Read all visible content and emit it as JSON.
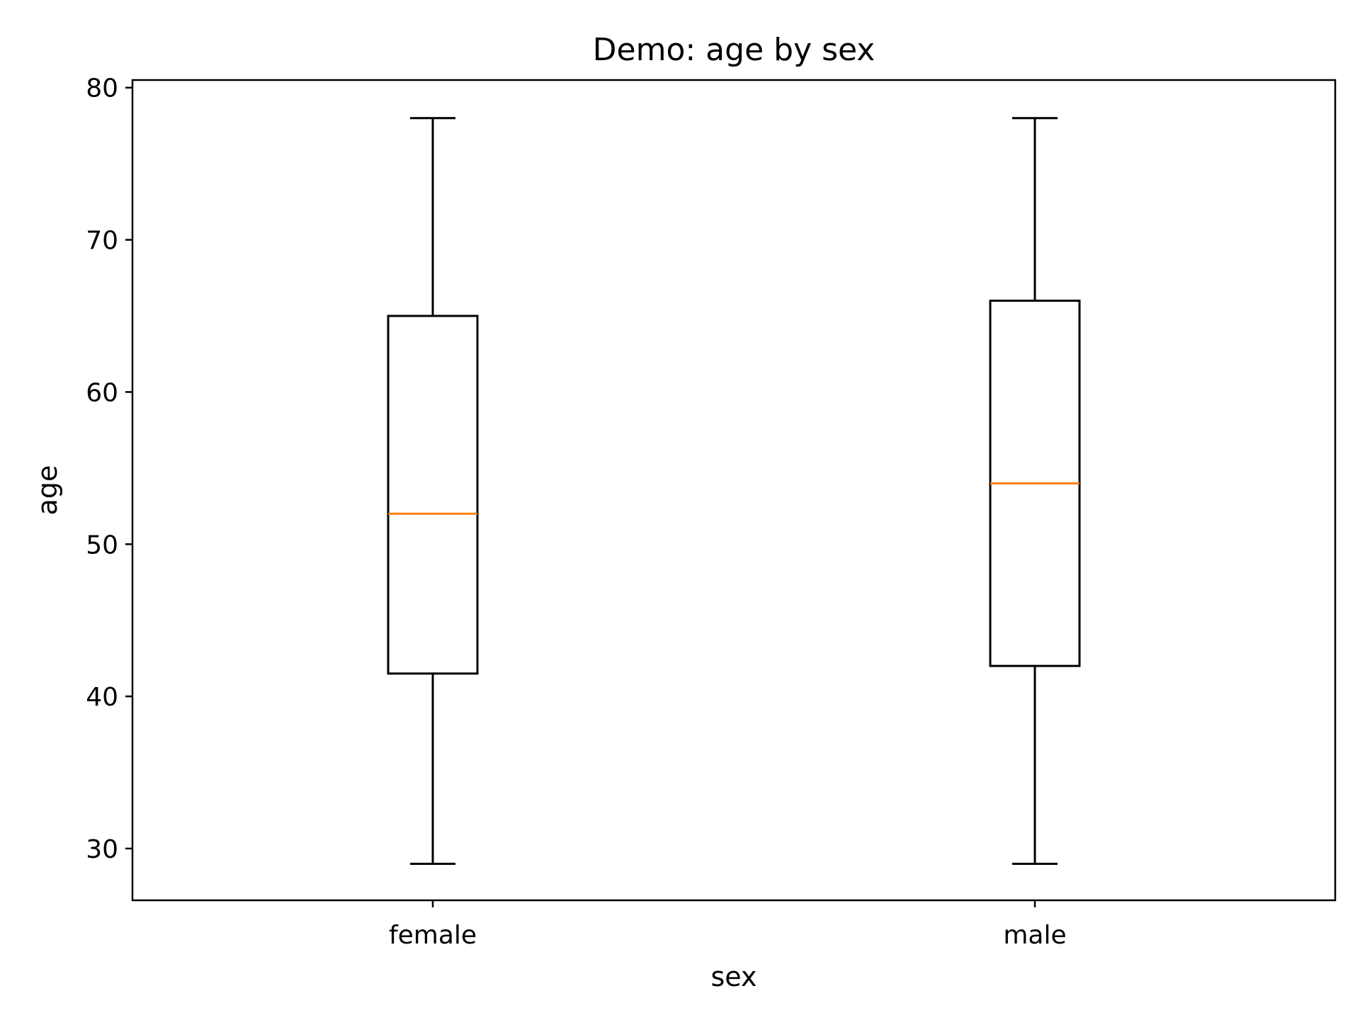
{
  "chart_data": {
    "type": "box",
    "title": "Demo: age by sex",
    "xlabel": "sex",
    "ylabel": "age",
    "categories": [
      "female",
      "male"
    ],
    "ylim": [
      26.6,
      80.5
    ],
    "yticks": [
      30,
      40,
      50,
      60,
      70,
      80
    ],
    "grid": false,
    "boxes": [
      {
        "category": "female",
        "whisker_low": 29,
        "q1": 41.5,
        "median": 52,
        "q3": 65,
        "whisker_high": 78
      },
      {
        "category": "male",
        "whisker_low": 29,
        "q1": 42,
        "median": 54,
        "q3": 66,
        "whisker_high": 78
      }
    ],
    "colors": {
      "box": "#000000",
      "median": "#ff7f0e"
    }
  }
}
